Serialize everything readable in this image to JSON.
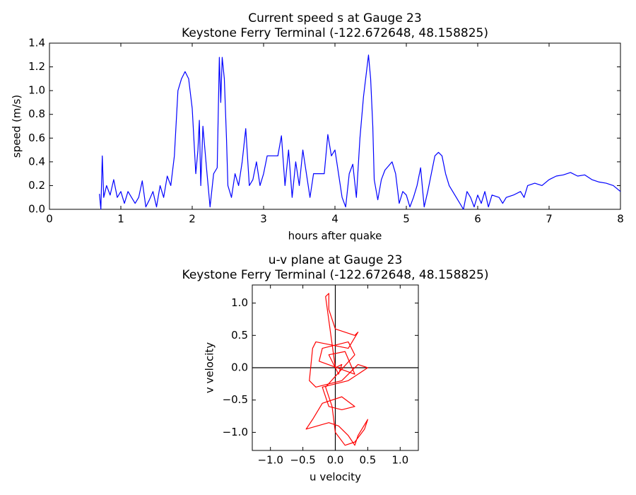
{
  "chart_data": [
    {
      "type": "line",
      "title": "Current speed s at Gauge 23",
      "subtitle": "Keystone Ferry Terminal  (-122.672648, 48.158825)",
      "xlabel": "hours after quake",
      "ylabel": "speed (m/s)",
      "color": "#0000ff",
      "xlim": [
        0,
        8
      ],
      "ylim": [
        0,
        1.4
      ],
      "xticks": [
        0,
        1,
        2,
        3,
        4,
        5,
        6,
        7,
        8
      ],
      "yticks": [
        {
          "value": 0,
          "label": "0.0"
        },
        0.2,
        0.4,
        0.6,
        0.8,
        {
          "value": 1,
          "label": "1.0"
        },
        1.2,
        1.4
      ],
      "x": [
        0.7,
        0.72,
        0.74,
        0.76,
        0.8,
        0.85,
        0.9,
        0.95,
        1.0,
        1.05,
        1.1,
        1.2,
        1.25,
        1.3,
        1.35,
        1.4,
        1.45,
        1.5,
        1.55,
        1.6,
        1.65,
        1.7,
        1.75,
        1.8,
        1.85,
        1.9,
        1.95,
        2.0,
        2.05,
        2.08,
        2.1,
        2.12,
        2.15,
        2.2,
        2.25,
        2.3,
        2.35,
        2.38,
        2.4,
        2.42,
        2.45,
        2.48,
        2.5,
        2.55,
        2.6,
        2.65,
        2.7,
        2.75,
        2.8,
        2.85,
        2.9,
        2.95,
        3.0,
        3.05,
        3.2,
        3.25,
        3.3,
        3.35,
        3.4,
        3.45,
        3.5,
        3.55,
        3.6,
        3.65,
        3.7,
        3.8,
        3.85,
        3.9,
        3.95,
        4.0,
        4.05,
        4.1,
        4.15,
        4.2,
        4.25,
        4.3,
        4.35,
        4.4,
        4.45,
        4.47,
        4.5,
        4.53,
        4.55,
        4.6,
        4.65,
        4.7,
        4.8,
        4.85,
        4.9,
        4.95,
        5.0,
        5.05,
        5.1,
        5.15,
        5.2,
        5.25,
        5.3,
        5.35,
        5.4,
        5.45,
        5.5,
        5.55,
        5.6,
        5.65,
        5.7,
        5.8,
        5.85,
        5.9,
        5.95,
        6.0,
        6.05,
        6.1,
        6.15,
        6.2,
        6.3,
        6.35,
        6.4,
        6.5,
        6.6,
        6.65,
        6.7,
        6.8,
        6.9,
        7.0,
        7.1,
        7.2,
        7.3,
        7.4,
        7.5,
        7.6,
        7.7,
        7.8,
        7.9,
        8.0
      ],
      "values": [
        0.13,
        0.0,
        0.45,
        0.1,
        0.2,
        0.12,
        0.25,
        0.1,
        0.15,
        0.05,
        0.15,
        0.05,
        0.1,
        0.24,
        0.02,
        0.08,
        0.15,
        0.02,
        0.2,
        0.1,
        0.28,
        0.2,
        0.45,
        1.0,
        1.1,
        1.16,
        1.1,
        0.85,
        0.3,
        0.5,
        0.75,
        0.2,
        0.7,
        0.35,
        0.02,
        0.3,
        0.35,
        1.28,
        0.9,
        1.28,
        1.1,
        0.6,
        0.2,
        0.1,
        0.3,
        0.2,
        0.4,
        0.68,
        0.2,
        0.25,
        0.4,
        0.2,
        0.3,
        0.45,
        0.45,
        0.62,
        0.2,
        0.5,
        0.1,
        0.4,
        0.2,
        0.5,
        0.3,
        0.1,
        0.3,
        0.3,
        0.3,
        0.63,
        0.45,
        0.5,
        0.3,
        0.1,
        0.02,
        0.3,
        0.38,
        0.1,
        0.6,
        0.95,
        1.2,
        1.3,
        1.1,
        0.7,
        0.25,
        0.08,
        0.25,
        0.33,
        0.4,
        0.3,
        0.05,
        0.15,
        0.12,
        0.02,
        0.1,
        0.2,
        0.35,
        0.02,
        0.15,
        0.3,
        0.45,
        0.48,
        0.45,
        0.3,
        0.2,
        0.15,
        0.1,
        0.0,
        0.15,
        0.1,
        0.02,
        0.12,
        0.05,
        0.15,
        0.02,
        0.12,
        0.1,
        0.05,
        0.1,
        0.12,
        0.15,
        0.1,
        0.2,
        0.22,
        0.2,
        0.25,
        0.28,
        0.29,
        0.31,
        0.28,
        0.29,
        0.25,
        0.23,
        0.22,
        0.2,
        0.15
      ]
    },
    {
      "type": "line",
      "title": "u-v plane at Gauge 23",
      "subtitle": "Keystone Ferry Terminal  (-122.672648, 48.158825)",
      "xlabel": "u velocity",
      "ylabel": "v velocity",
      "color": "#ff0000",
      "origin_lines": true,
      "xlim": [
        -1.28,
        1.28
      ],
      "ylim": [
        -1.28,
        1.28
      ],
      "xticks": [
        {
          "value": -1,
          "label": "−1.0"
        },
        {
          "value": -0.5,
          "label": "−0.5"
        },
        {
          "value": 0,
          "label": "0.0"
        },
        0.5,
        {
          "value": 1,
          "label": "1.0"
        }
      ],
      "yticks": [
        {
          "value": -1,
          "label": "−1.0"
        },
        {
          "value": -0.5,
          "label": "−0.5"
        },
        {
          "value": 0,
          "label": "0.0"
        },
        0.5,
        {
          "value": 1,
          "label": "1.0"
        }
      ],
      "x": [
        0,
        -0.15,
        -0.1,
        -0.1,
        0,
        0.3,
        0.35,
        0.2,
        -0.3,
        -0.35,
        -0.4,
        -0.3,
        0.1,
        0.35,
        0.5,
        0.2,
        -0.2,
        -0.1,
        0.1,
        0.3,
        0.1,
        -0.2,
        -0.35,
        -0.45,
        -0.1,
        0.05,
        0.2,
        0.3,
        0.35,
        0.5,
        0.45,
        0.3,
        0.15,
        0,
        -0.05,
        -0.15,
        0.3,
        0.2,
        -0.2,
        -0.25,
        0.3,
        0.15,
        -0.1,
        0.05,
        0.1,
        0
      ],
      "values": [
        0,
        1.1,
        1.15,
        0.9,
        0.6,
        0.5,
        0.55,
        0.3,
        0.4,
        0.3,
        -0.2,
        -0.3,
        -0.2,
        0.05,
        0,
        -0.2,
        -0.3,
        -0.6,
        -0.65,
        -0.6,
        -0.45,
        -0.55,
        -0.8,
        -0.95,
        -0.85,
        -0.9,
        -1.05,
        -1.2,
        -1.05,
        -0.8,
        -0.95,
        -1.15,
        -1.2,
        -1,
        -0.6,
        -0.3,
        0.2,
        0.4,
        0.3,
        0.1,
        -0.1,
        0.25,
        0.2,
        -0.1,
        0.05,
        0
      ]
    }
  ]
}
